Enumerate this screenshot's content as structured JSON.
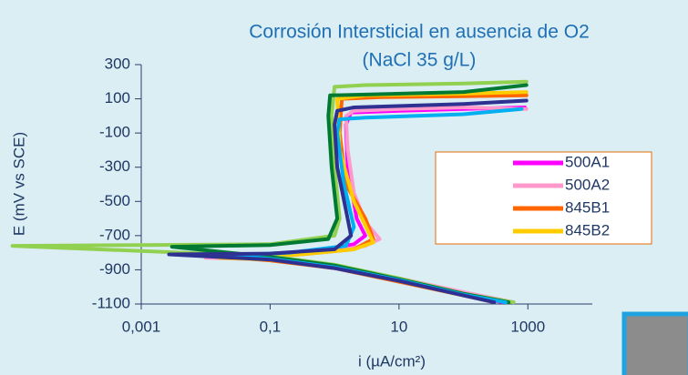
{
  "chart_data": {
    "type": "line",
    "title": "Corrosión Intersticial en ausencia de O2",
    "subtitle": "(NaCl 35 g/L)",
    "x_label": "i (µA/cm²)",
    "y_label": "E (mV vs SCE)",
    "xscale": "log",
    "xlim": [
      0.001,
      10000
    ],
    "ylim": [
      -1100,
      300
    ],
    "xticks": [
      {
        "value": 0.001,
        "label": "0,001"
      },
      {
        "value": 0.1,
        "label": "0,1"
      },
      10,
      1000
    ],
    "yticks": [
      300,
      100,
      -100,
      -300,
      -500,
      -700,
      -900,
      -1100
    ],
    "grid": false,
    "legend": "right",
    "series": [
      {
        "name": "500A1",
        "color": "#ff00ff",
        "x": [
          400,
          100,
          10,
          1,
          0.1,
          0.03,
          0.1,
          0.5,
          2,
          3,
          2.2,
          1.6,
          1.5,
          1.8,
          10,
          100,
          900
        ],
        "values": [
          -1090,
          -1040,
          -960,
          -890,
          -840,
          -825,
          -810,
          -790,
          -750,
          -700,
          -600,
          -300,
          -50,
          20,
          30,
          40,
          50
        ]
      },
      {
        "name": "500A2",
        "color": "#ff99cc",
        "x": [
          600,
          100,
          10,
          1,
          0.1,
          0.01,
          0.1,
          1,
          3,
          5,
          3,
          2,
          1.6,
          1.5,
          2,
          10,
          100,
          950
        ],
        "values": [
          -1090,
          -1030,
          -950,
          -880,
          -840,
          -830,
          -820,
          -790,
          -760,
          -720,
          -620,
          -450,
          -200,
          0,
          30,
          40,
          50,
          40
        ]
      },
      {
        "name": "845B1",
        "color": "#ff6600",
        "x": [
          300,
          100,
          10,
          1,
          0.1,
          0.03,
          0.3,
          2,
          4,
          3,
          1.5,
          1.2,
          1.3,
          5,
          100,
          950
        ],
        "values": [
          -1090,
          -1050,
          -970,
          -890,
          -845,
          -830,
          -810,
          -780,
          -720,
          -600,
          -400,
          -100,
          100,
          110,
          115,
          120
        ]
      },
      {
        "name": "845B2",
        "color": "#ffcc00",
        "x": [
          500,
          100,
          10,
          1,
          0.1,
          0.016,
          0.3,
          2,
          4,
          3,
          2,
          1.2,
          1.1,
          3,
          100,
          950
        ],
        "values": [
          -1090,
          -1040,
          -960,
          -880,
          -840,
          -830,
          -810,
          -780,
          -740,
          -640,
          -500,
          -200,
          100,
          120,
          130,
          140
        ]
      },
      {
        "color": "#92d050",
        "x": [
          600,
          100,
          10,
          1,
          0.1,
          0.001,
          1e-05,
          0.001,
          0.1,
          1,
          1.2,
          1,
          0.9,
          1,
          3,
          100,
          950
        ],
        "values": [
          -1090,
          -1040,
          -950,
          -870,
          -820,
          -790,
          -760,
          -755,
          -750,
          -700,
          -600,
          -300,
          0,
          170,
          180,
          190,
          200
        ]
      },
      {
        "color": "#007a33",
        "x": [
          500,
          100,
          10,
          1,
          0.1,
          0.003,
          0.1,
          0.8,
          1.1,
          0.9,
          0.8,
          0.85,
          3,
          100,
          950
        ],
        "values": [
          -1090,
          -1040,
          -955,
          -875,
          -825,
          -765,
          -755,
          -720,
          -600,
          -300,
          0,
          120,
          125,
          140,
          180
        ]
      },
      {
        "color": "#00b0f0",
        "x": [
          450,
          100,
          10,
          1,
          0.1,
          0.02,
          0.2,
          1.5,
          2,
          1.4,
          1.1,
          1.2,
          3,
          100,
          800
        ],
        "values": [
          -1090,
          -1045,
          -960,
          -885,
          -835,
          -815,
          -800,
          -760,
          -650,
          -400,
          -100,
          -20,
          -10,
          10,
          40
        ]
      },
      {
        "color": "#2e3192",
        "x": [
          300,
          100,
          10,
          1,
          0.1,
          0.0027,
          0.1,
          1,
          1.8,
          1.5,
          1.1,
          1,
          1.1,
          2,
          100,
          950
        ],
        "values": [
          -1090,
          -1050,
          -965,
          -890,
          -840,
          -810,
          -805,
          -780,
          -700,
          -550,
          -300,
          -50,
          30,
          50,
          70,
          90
        ]
      }
    ]
  }
}
